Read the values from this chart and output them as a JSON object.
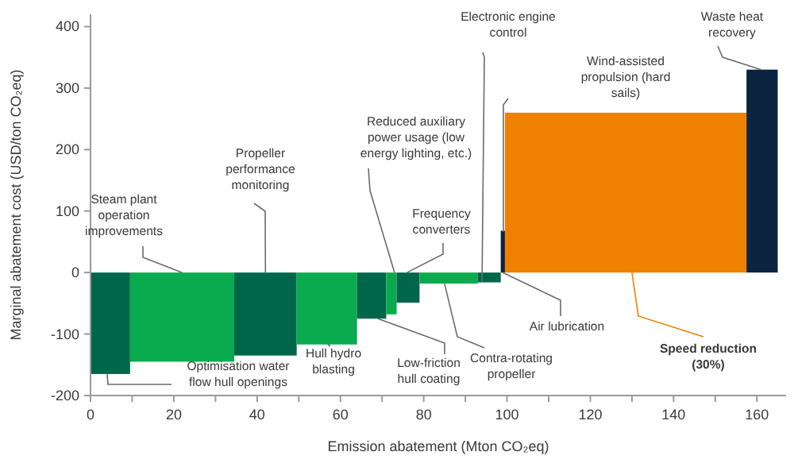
{
  "chart_data": {
    "type": "histogram",
    "xlabel": "Emission abatement (Mton CO₂eq)",
    "ylabel": "Marginal abatement cost (USD/ton CO₂eq)",
    "bins": [
      0,
      9.5,
      34.5,
      49.5,
      64,
      71,
      73.5,
      79,
      93,
      98.5,
      99.5,
      157.5,
      165
    ],
    "values": [
      -165,
      -145,
      -135,
      -117,
      -75,
      -68,
      -49,
      -18,
      -16,
      68,
      260,
      330
    ],
    "colors": [
      "#00664a",
      "#09ab4e",
      "#00664a",
      "#09ab4e",
      "#00664a",
      "#09ab4e",
      "#00664a",
      "#09ab4e",
      "#00664a",
      "#0c2340",
      "#f08100",
      "#0c2340"
    ],
    "xlim": [
      0,
      167
    ],
    "xticks": [
      0,
      {
        "value": 10,
        "label": null
      },
      20,
      {
        "value": 30,
        "label": null
      },
      40,
      {
        "value": 50,
        "label": null
      },
      60,
      {
        "value": 70,
        "label": null
      },
      80,
      {
        "value": 90,
        "label": null
      },
      100,
      {
        "value": 110,
        "label": null
      },
      120,
      {
        "value": 130,
        "label": null
      },
      140,
      {
        "value": 150,
        "label": null
      },
      160
    ],
    "ylim": [
      -200,
      420
    ],
    "yticks": [
      -200,
      -100,
      0,
      100,
      200,
      300,
      400
    ],
    "grid": false,
    "annotations": [
      {
        "text": "Optimisation water flow hull openings",
        "x": 4,
        "y": -165
      },
      {
        "text": "Steam plant operation improvements",
        "x": 22,
        "y": 0
      },
      {
        "text": "Propeller performance monitoring",
        "x": 42,
        "y": 0
      },
      {
        "text": "Hull hydro blasting",
        "x": 57,
        "y": -117
      },
      {
        "text": "Reduced auxiliary power usage (low energy lighting, etc.)",
        "x": 73,
        "y": 0
      },
      {
        "text": "Low-friction hull coating",
        "x": 69,
        "y": -75
      },
      {
        "text": "Frequency converters",
        "x": 76,
        "y": 0
      },
      {
        "text": "Contra-rotating propeller",
        "x": 85,
        "y": -18
      },
      {
        "text": "Electronic engine control",
        "x": 94,
        "y": -16
      },
      "Wind-assisted propulsion (hard sails)",
      {
        "text": "Air lubrication",
        "x": 99,
        "y": 0
      },
      {
        "text": "Speed reduction (30%)",
        "x": 130,
        "y": 0
      },
      {
        "text": "Waste heat recovery",
        "x": 161,
        "y": 330
      }
    ]
  }
}
